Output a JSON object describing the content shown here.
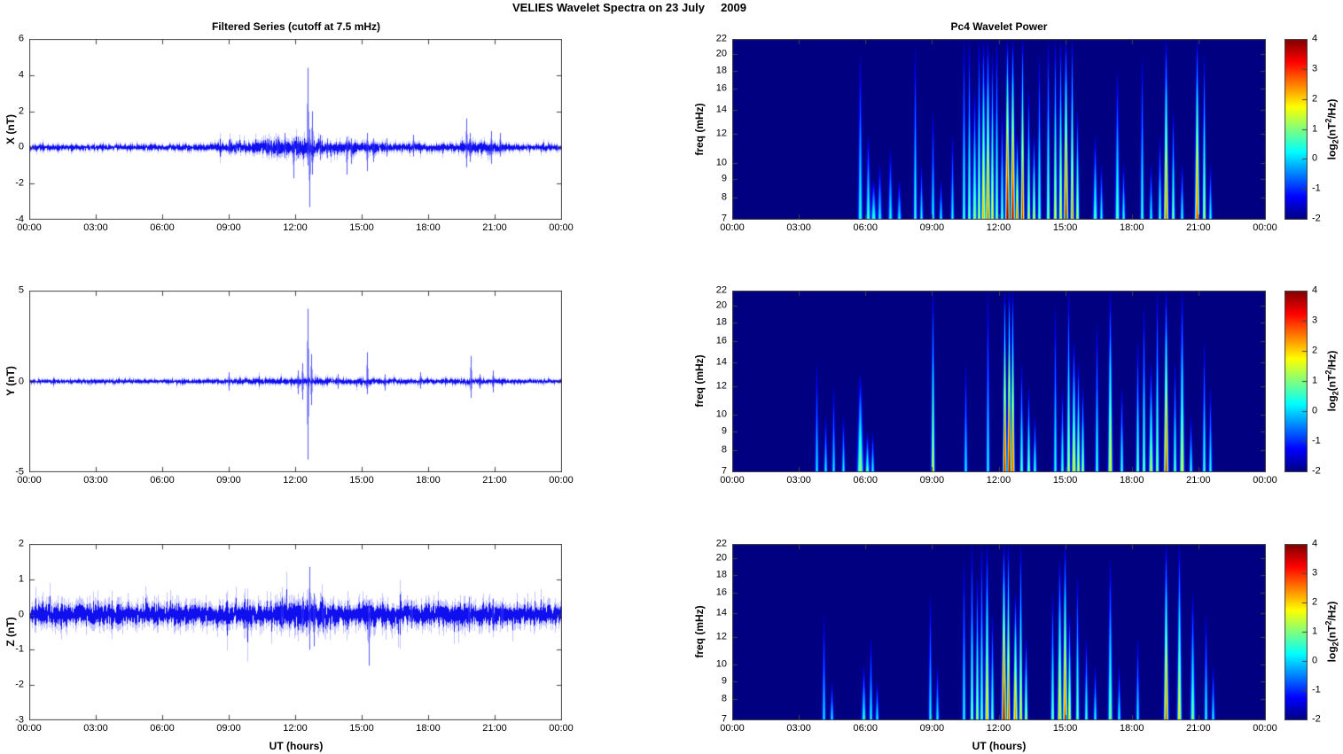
{
  "figure_title": "VELIES Wavelet Spectra on 23 July     2009",
  "xlabel": "UT (hours)",
  "time_tick_labels": [
    "00:00",
    "03:00",
    "06:00",
    "09:00",
    "12:00",
    "15:00",
    "18:00",
    "21:00",
    "00:00"
  ],
  "time_tick_hours": [
    0,
    3,
    6,
    9,
    12,
    15,
    18,
    21,
    24
  ],
  "colors": {
    "series_line": "#0000EE",
    "axis_frame": "#444444",
    "spectrogram_background": "#00008F",
    "text": "#000000"
  },
  "colorbar": {
    "ticks": [
      4,
      3,
      2,
      1,
      0,
      -1,
      -2
    ],
    "range": [
      -2,
      4
    ],
    "colormap": "jet",
    "label_parts": {
      "pre": "log",
      "sub": "2",
      "mid": "(nT",
      "sup": "2",
      "post": "/Hz)"
    }
  },
  "chart_data": [
    {
      "id": "x-filtered-series",
      "type": "line",
      "title": "Filtered Series (cutoff at 7.5 mHz)",
      "ylabel": "X (nT)",
      "ylim": [
        -4,
        6
      ],
      "yticks": [
        6,
        4,
        2,
        0,
        -2,
        -4
      ],
      "xlim_hours": [
        0,
        24
      ],
      "noise_envelope_format": [
        "t_hours",
        "sigma_nT"
      ],
      "noise_envelope": [
        [
          0,
          0.07
        ],
        [
          6,
          0.07
        ],
        [
          8,
          0.08
        ],
        [
          9,
          0.12
        ],
        [
          10,
          0.14
        ],
        [
          10.5,
          0.16
        ],
        [
          11,
          0.18
        ],
        [
          12.3,
          0.2
        ],
        [
          12.8,
          0.18
        ],
        [
          13.5,
          0.15
        ],
        [
          14.5,
          0.13
        ],
        [
          15.5,
          0.12
        ],
        [
          16.5,
          0.1
        ],
        [
          18,
          0.09
        ],
        [
          19.3,
          0.1
        ],
        [
          19.6,
          0.14
        ],
        [
          20.5,
          0.14
        ],
        [
          21.3,
          0.12
        ],
        [
          21.6,
          0.08
        ],
        [
          24,
          0.07
        ]
      ],
      "spike_format": [
        "t_hours",
        "peak_up_nT",
        "peak_down_nT"
      ],
      "spikes": [
        [
          9.0,
          0.4,
          -0.4
        ],
        [
          9.3,
          0.35,
          -0.35
        ],
        [
          10.7,
          0.5,
          -0.4
        ],
        [
          10.9,
          0.4,
          -0.5
        ],
        [
          11.2,
          0.6,
          -0.5
        ],
        [
          11.5,
          0.8,
          -0.6
        ],
        [
          11.9,
          0.5,
          -1.7
        ],
        [
          12.1,
          0.6,
          -0.6
        ],
        [
          12.55,
          4.4,
          -1.0
        ],
        [
          12.62,
          1.0,
          -3.3
        ],
        [
          12.75,
          2.0,
          -1.5
        ],
        [
          13.1,
          0.7,
          -0.7
        ],
        [
          13.4,
          0.5,
          -0.6
        ],
        [
          14.3,
          0.6,
          -1.5
        ],
        [
          14.5,
          0.5,
          -0.9
        ],
        [
          15.2,
          0.8,
          -1.3
        ],
        [
          15.5,
          0.5,
          -0.8
        ],
        [
          16.1,
          0.5,
          -0.5
        ],
        [
          17.3,
          0.7,
          -0.5
        ],
        [
          19.7,
          1.6,
          -1.1
        ],
        [
          19.85,
          0.8,
          -0.8
        ],
        [
          20.8,
          0.9,
          -0.9
        ],
        [
          21.2,
          0.8,
          -0.5
        ]
      ]
    },
    {
      "id": "x-pc4-wavelet-power",
      "type": "heatmap",
      "title": "Pc4 Wavelet Power",
      "ylabel": "freq (mHz)",
      "yscale": "log",
      "ylim": [
        7,
        22
      ],
      "yticks": [
        22,
        20,
        18,
        16,
        14,
        12,
        10,
        9,
        8,
        7
      ],
      "clim": [
        -2,
        4
      ],
      "colormap": "jet",
      "streak_format": [
        "t_hours",
        "f_top_mHz",
        "peak_log2_power",
        "width_hours"
      ],
      "streaks": [
        [
          5.75,
          20,
          0.6,
          0.05
        ],
        [
          6.1,
          12,
          0.8,
          0.05
        ],
        [
          6.35,
          9,
          0.7,
          0.06
        ],
        [
          6.6,
          10,
          0.4,
          0.05
        ],
        [
          7.1,
          11,
          0.4,
          0.05
        ],
        [
          7.5,
          9,
          0.3,
          0.05
        ],
        [
          8.2,
          21,
          0.7,
          0.04
        ],
        [
          8.5,
          10,
          0.4,
          0.04
        ],
        [
          9.0,
          14,
          0.5,
          0.04
        ],
        [
          9.35,
          9,
          0.4,
          0.04
        ],
        [
          9.9,
          12,
          0.4,
          0.04
        ],
        [
          10.4,
          22,
          0.9,
          0.04
        ],
        [
          10.65,
          22,
          1.1,
          0.04
        ],
        [
          10.9,
          16,
          1.3,
          0.05
        ],
        [
          11.1,
          22,
          1.6,
          0.04
        ],
        [
          11.3,
          22,
          2.3,
          0.05
        ],
        [
          11.5,
          22,
          2.9,
          0.05
        ],
        [
          11.7,
          20,
          2.0,
          0.04
        ],
        [
          11.9,
          22,
          1.3,
          0.04
        ],
        [
          12.1,
          14,
          1.1,
          0.04
        ],
        [
          12.35,
          22,
          4.0,
          0.05
        ],
        [
          12.6,
          22,
          3.8,
          0.05
        ],
        [
          12.8,
          12,
          2.6,
          0.04
        ],
        [
          13.05,
          22,
          3.2,
          0.04
        ],
        [
          13.3,
          16,
          1.6,
          0.04
        ],
        [
          13.55,
          12,
          1.8,
          0.04
        ],
        [
          13.8,
          20,
          1.0,
          0.04
        ],
        [
          14.2,
          22,
          1.3,
          0.04
        ],
        [
          14.5,
          22,
          1.8,
          0.04
        ],
        [
          14.75,
          22,
          2.0,
          0.04
        ],
        [
          15.0,
          22,
          3.5,
          0.05
        ],
        [
          15.25,
          22,
          2.5,
          0.04
        ],
        [
          15.5,
          14,
          1.6,
          0.04
        ],
        [
          16.3,
          12,
          0.9,
          0.05
        ],
        [
          16.6,
          10,
          0.5,
          0.04
        ],
        [
          17.3,
          18,
          0.9,
          0.05
        ],
        [
          17.6,
          10,
          0.6,
          0.04
        ],
        [
          18.4,
          20,
          0.8,
          0.04
        ],
        [
          18.8,
          10,
          0.5,
          0.04
        ],
        [
          19.2,
          12,
          0.8,
          0.04
        ],
        [
          19.5,
          22,
          2.9,
          0.05
        ],
        [
          19.8,
          14,
          1.2,
          0.04
        ],
        [
          20.2,
          10,
          0.6,
          0.04
        ],
        [
          20.9,
          22,
          3.0,
          0.05
        ],
        [
          21.2,
          20,
          1.6,
          0.04
        ],
        [
          21.5,
          10,
          0.5,
          0.04
        ]
      ]
    },
    {
      "id": "y-filtered-series",
      "type": "line",
      "title": "",
      "ylabel": "Y (nT)",
      "ylim": [
        -5,
        5
      ],
      "yticks": [
        5,
        0,
        -5
      ],
      "xlim_hours": [
        0,
        24
      ],
      "noise_envelope_format": [
        "t_hours",
        "sigma_nT"
      ],
      "noise_envelope": [
        [
          0,
          0.05
        ],
        [
          8,
          0.05
        ],
        [
          9,
          0.06
        ],
        [
          11,
          0.07
        ],
        [
          12,
          0.08
        ],
        [
          13,
          0.08
        ],
        [
          14,
          0.07
        ],
        [
          15,
          0.08
        ],
        [
          16,
          0.06
        ],
        [
          19,
          0.06
        ],
        [
          20,
          0.07
        ],
        [
          21,
          0.06
        ],
        [
          22,
          0.05
        ],
        [
          24,
          0.05
        ]
      ],
      "spike_format": [
        "t_hours",
        "peak_up_nT",
        "peak_down_nT"
      ],
      "spikes": [
        [
          9.0,
          0.5,
          -0.5
        ],
        [
          12.1,
          0.6,
          -0.7
        ],
        [
          12.3,
          1.0,
          -1.0
        ],
        [
          12.55,
          4.0,
          -4.3
        ],
        [
          12.7,
          1.5,
          -1.3
        ],
        [
          13.9,
          0.4,
          -0.4
        ],
        [
          15.2,
          1.6,
          -0.7
        ],
        [
          16.0,
          0.4,
          -0.5
        ],
        [
          17.6,
          0.5,
          -0.4
        ],
        [
          19.9,
          1.4,
          -0.9
        ],
        [
          20.3,
          0.4,
          -0.4
        ],
        [
          20.9,
          0.6,
          -0.6
        ]
      ]
    },
    {
      "id": "y-pc4-wavelet-power",
      "type": "heatmap",
      "title": "",
      "ylabel": "freq (mHz)",
      "yscale": "log",
      "ylim": [
        7,
        22
      ],
      "yticks": [
        22,
        20,
        18,
        16,
        14,
        12,
        10,
        9,
        8,
        7
      ],
      "clim": [
        -2,
        4
      ],
      "colormap": "jet",
      "streak_format": [
        "t_hours",
        "f_top_mHz",
        "peak_log2_power",
        "width_hours"
      ],
      "streaks": [
        [
          3.8,
          14,
          0.3,
          0.04
        ],
        [
          4.2,
          10,
          0.35,
          0.04
        ],
        [
          4.55,
          12,
          0.3,
          0.04
        ],
        [
          5.0,
          10,
          0.35,
          0.04
        ],
        [
          5.75,
          13,
          1.3,
          0.07
        ],
        [
          6.05,
          9,
          0.8,
          0.05
        ],
        [
          6.3,
          9,
          0.5,
          0.04
        ],
        [
          9.0,
          22,
          1.8,
          0.04
        ],
        [
          10.5,
          14,
          0.4,
          0.04
        ],
        [
          11.5,
          22,
          0.5,
          0.04
        ],
        [
          12.25,
          22,
          3.6,
          0.04
        ],
        [
          12.42,
          22,
          4.0,
          0.04
        ],
        [
          12.6,
          22,
          3.2,
          0.04
        ],
        [
          13.0,
          14,
          1.0,
          0.04
        ],
        [
          13.3,
          12,
          1.2,
          0.04
        ],
        [
          13.6,
          10,
          0.8,
          0.04
        ],
        [
          14.5,
          20,
          0.6,
          0.04
        ],
        [
          14.85,
          12,
          0.8,
          0.04
        ],
        [
          15.1,
          22,
          1.6,
          0.04
        ],
        [
          15.35,
          16,
          2.0,
          0.05
        ],
        [
          15.55,
          14,
          1.8,
          0.04
        ],
        [
          15.75,
          12,
          1.5,
          0.04
        ],
        [
          16.4,
          18,
          0.8,
          0.04
        ],
        [
          17.0,
          22,
          2.0,
          0.05
        ],
        [
          17.5,
          12,
          0.8,
          0.04
        ],
        [
          18.2,
          16,
          1.1,
          0.04
        ],
        [
          18.5,
          20,
          1.2,
          0.04
        ],
        [
          18.8,
          14,
          1.5,
          0.05
        ],
        [
          19.1,
          22,
          1.3,
          0.04
        ],
        [
          19.5,
          22,
          3.2,
          0.05
        ],
        [
          19.9,
          14,
          1.0,
          0.04
        ],
        [
          20.2,
          22,
          1.8,
          0.05
        ],
        [
          20.6,
          10,
          0.6,
          0.04
        ],
        [
          21.2,
          16,
          0.8,
          0.04
        ],
        [
          21.5,
          12,
          0.5,
          0.04
        ]
      ]
    },
    {
      "id": "z-filtered-series",
      "type": "line",
      "title": "",
      "ylabel": "Z (nT)",
      "ylim": [
        -3,
        2
      ],
      "yticks": [
        2,
        1,
        0,
        -1,
        -2,
        -3
      ],
      "xlim_hours": [
        0,
        24
      ],
      "noise_envelope_format": [
        "t_hours",
        "sigma_nT"
      ],
      "noise_envelope": [
        [
          0,
          0.13
        ],
        [
          9,
          0.13
        ],
        [
          10,
          0.15
        ],
        [
          11,
          0.16
        ],
        [
          12,
          0.17
        ],
        [
          13,
          0.16
        ],
        [
          14,
          0.15
        ],
        [
          15,
          0.15
        ],
        [
          16,
          0.14
        ],
        [
          18,
          0.13
        ],
        [
          19.5,
          0.15
        ],
        [
          21,
          0.14
        ],
        [
          21.8,
          0.13
        ],
        [
          24,
          0.13
        ]
      ],
      "spike_format": [
        "t_hours",
        "peak_up_nT",
        "peak_down_nT"
      ],
      "spikes": [
        [
          11.4,
          0.5,
          -0.4
        ],
        [
          12.3,
          0.5,
          -0.5
        ],
        [
          12.62,
          1.35,
          -1.0
        ],
        [
          12.8,
          0.6,
          -0.9
        ],
        [
          13.2,
          0.4,
          -0.5
        ],
        [
          15.3,
          0.4,
          -1.45
        ],
        [
          17.2,
          0.4,
          -0.4
        ],
        [
          19.8,
          0.5,
          -0.5
        ],
        [
          20.9,
          0.45,
          -0.45
        ],
        [
          21.3,
          0.35,
          -0.4
        ]
      ]
    },
    {
      "id": "z-pc4-wavelet-power",
      "type": "heatmap",
      "title": "",
      "ylabel": "freq (mHz)",
      "yscale": "log",
      "ylim": [
        7,
        22
      ],
      "yticks": [
        22,
        20,
        18,
        16,
        14,
        12,
        10,
        9,
        8,
        7
      ],
      "clim": [
        -2,
        4
      ],
      "colormap": "jet",
      "streak_format": [
        "t_hours",
        "f_top_mHz",
        "peak_log2_power",
        "width_hours"
      ],
      "streaks": [
        [
          4.1,
          14,
          0.3,
          0.04
        ],
        [
          4.45,
          9,
          0.35,
          0.04
        ],
        [
          5.9,
          10,
          0.6,
          0.05
        ],
        [
          6.2,
          12,
          0.5,
          0.04
        ],
        [
          6.5,
          9,
          0.4,
          0.04
        ],
        [
          8.9,
          16,
          0.4,
          0.04
        ],
        [
          9.2,
          10,
          0.35,
          0.04
        ],
        [
          10.4,
          20,
          0.6,
          0.04
        ],
        [
          10.75,
          22,
          1.3,
          0.04
        ],
        [
          11.0,
          18,
          1.5,
          0.04
        ],
        [
          11.2,
          22,
          1.1,
          0.04
        ],
        [
          11.45,
          22,
          2.2,
          0.05
        ],
        [
          11.7,
          14,
          1.0,
          0.04
        ],
        [
          12.2,
          22,
          3.8,
          0.05
        ],
        [
          12.38,
          22,
          3.0,
          0.04
        ],
        [
          12.7,
          16,
          2.6,
          0.05
        ],
        [
          12.95,
          22,
          2.0,
          0.04
        ],
        [
          13.2,
          12,
          1.6,
          0.04
        ],
        [
          14.4,
          16,
          1.2,
          0.04
        ],
        [
          14.7,
          20,
          2.2,
          0.05
        ],
        [
          14.95,
          22,
          3.0,
          0.05
        ],
        [
          15.15,
          14,
          2.0,
          0.04
        ],
        [
          15.5,
          18,
          1.1,
          0.04
        ],
        [
          15.9,
          12,
          0.8,
          0.04
        ],
        [
          16.3,
          10,
          0.5,
          0.04
        ],
        [
          17.0,
          20,
          1.2,
          0.05
        ],
        [
          17.4,
          10,
          0.5,
          0.04
        ],
        [
          18.2,
          12,
          0.4,
          0.04
        ],
        [
          19.5,
          22,
          3.0,
          0.05
        ],
        [
          20.1,
          22,
          2.0,
          0.05
        ],
        [
          20.7,
          16,
          1.2,
          0.05
        ],
        [
          21.3,
          14,
          0.6,
          0.04
        ],
        [
          21.6,
          10,
          0.4,
          0.04
        ]
      ]
    }
  ]
}
